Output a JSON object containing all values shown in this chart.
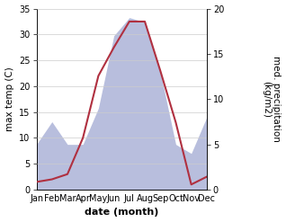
{
  "months": [
    "Jan",
    "Feb",
    "Mar",
    "Apr",
    "May",
    "Jun",
    "Jul",
    "Aug",
    "Sep",
    "Oct",
    "Nov",
    "Dec"
  ],
  "max_temp": [
    1.5,
    2.0,
    3.0,
    10.0,
    22.0,
    27.5,
    32.5,
    32.5,
    23.0,
    13.0,
    1.0,
    2.5
  ],
  "precipitation": [
    5.0,
    7.5,
    5.0,
    5.0,
    9.0,
    17.0,
    19.0,
    18.5,
    13.0,
    5.0,
    4.0,
    8.0
  ],
  "temp_color": "#b03040",
  "precip_fill_color": "#b8bedd",
  "left_ylim": [
    0,
    35
  ],
  "right_ylim": [
    0,
    20
  ],
  "left_yticks": [
    0,
    5,
    10,
    15,
    20,
    25,
    30,
    35
  ],
  "right_yticks": [
    0,
    5,
    10,
    15,
    20
  ],
  "xlabel": "date (month)",
  "ylabel_left": "max temp (C)",
  "ylabel_right": "med. precipitation\n(kg/m2)",
  "axis_fontsize": 8,
  "tick_fontsize": 7,
  "label_fontsize": 7.5
}
